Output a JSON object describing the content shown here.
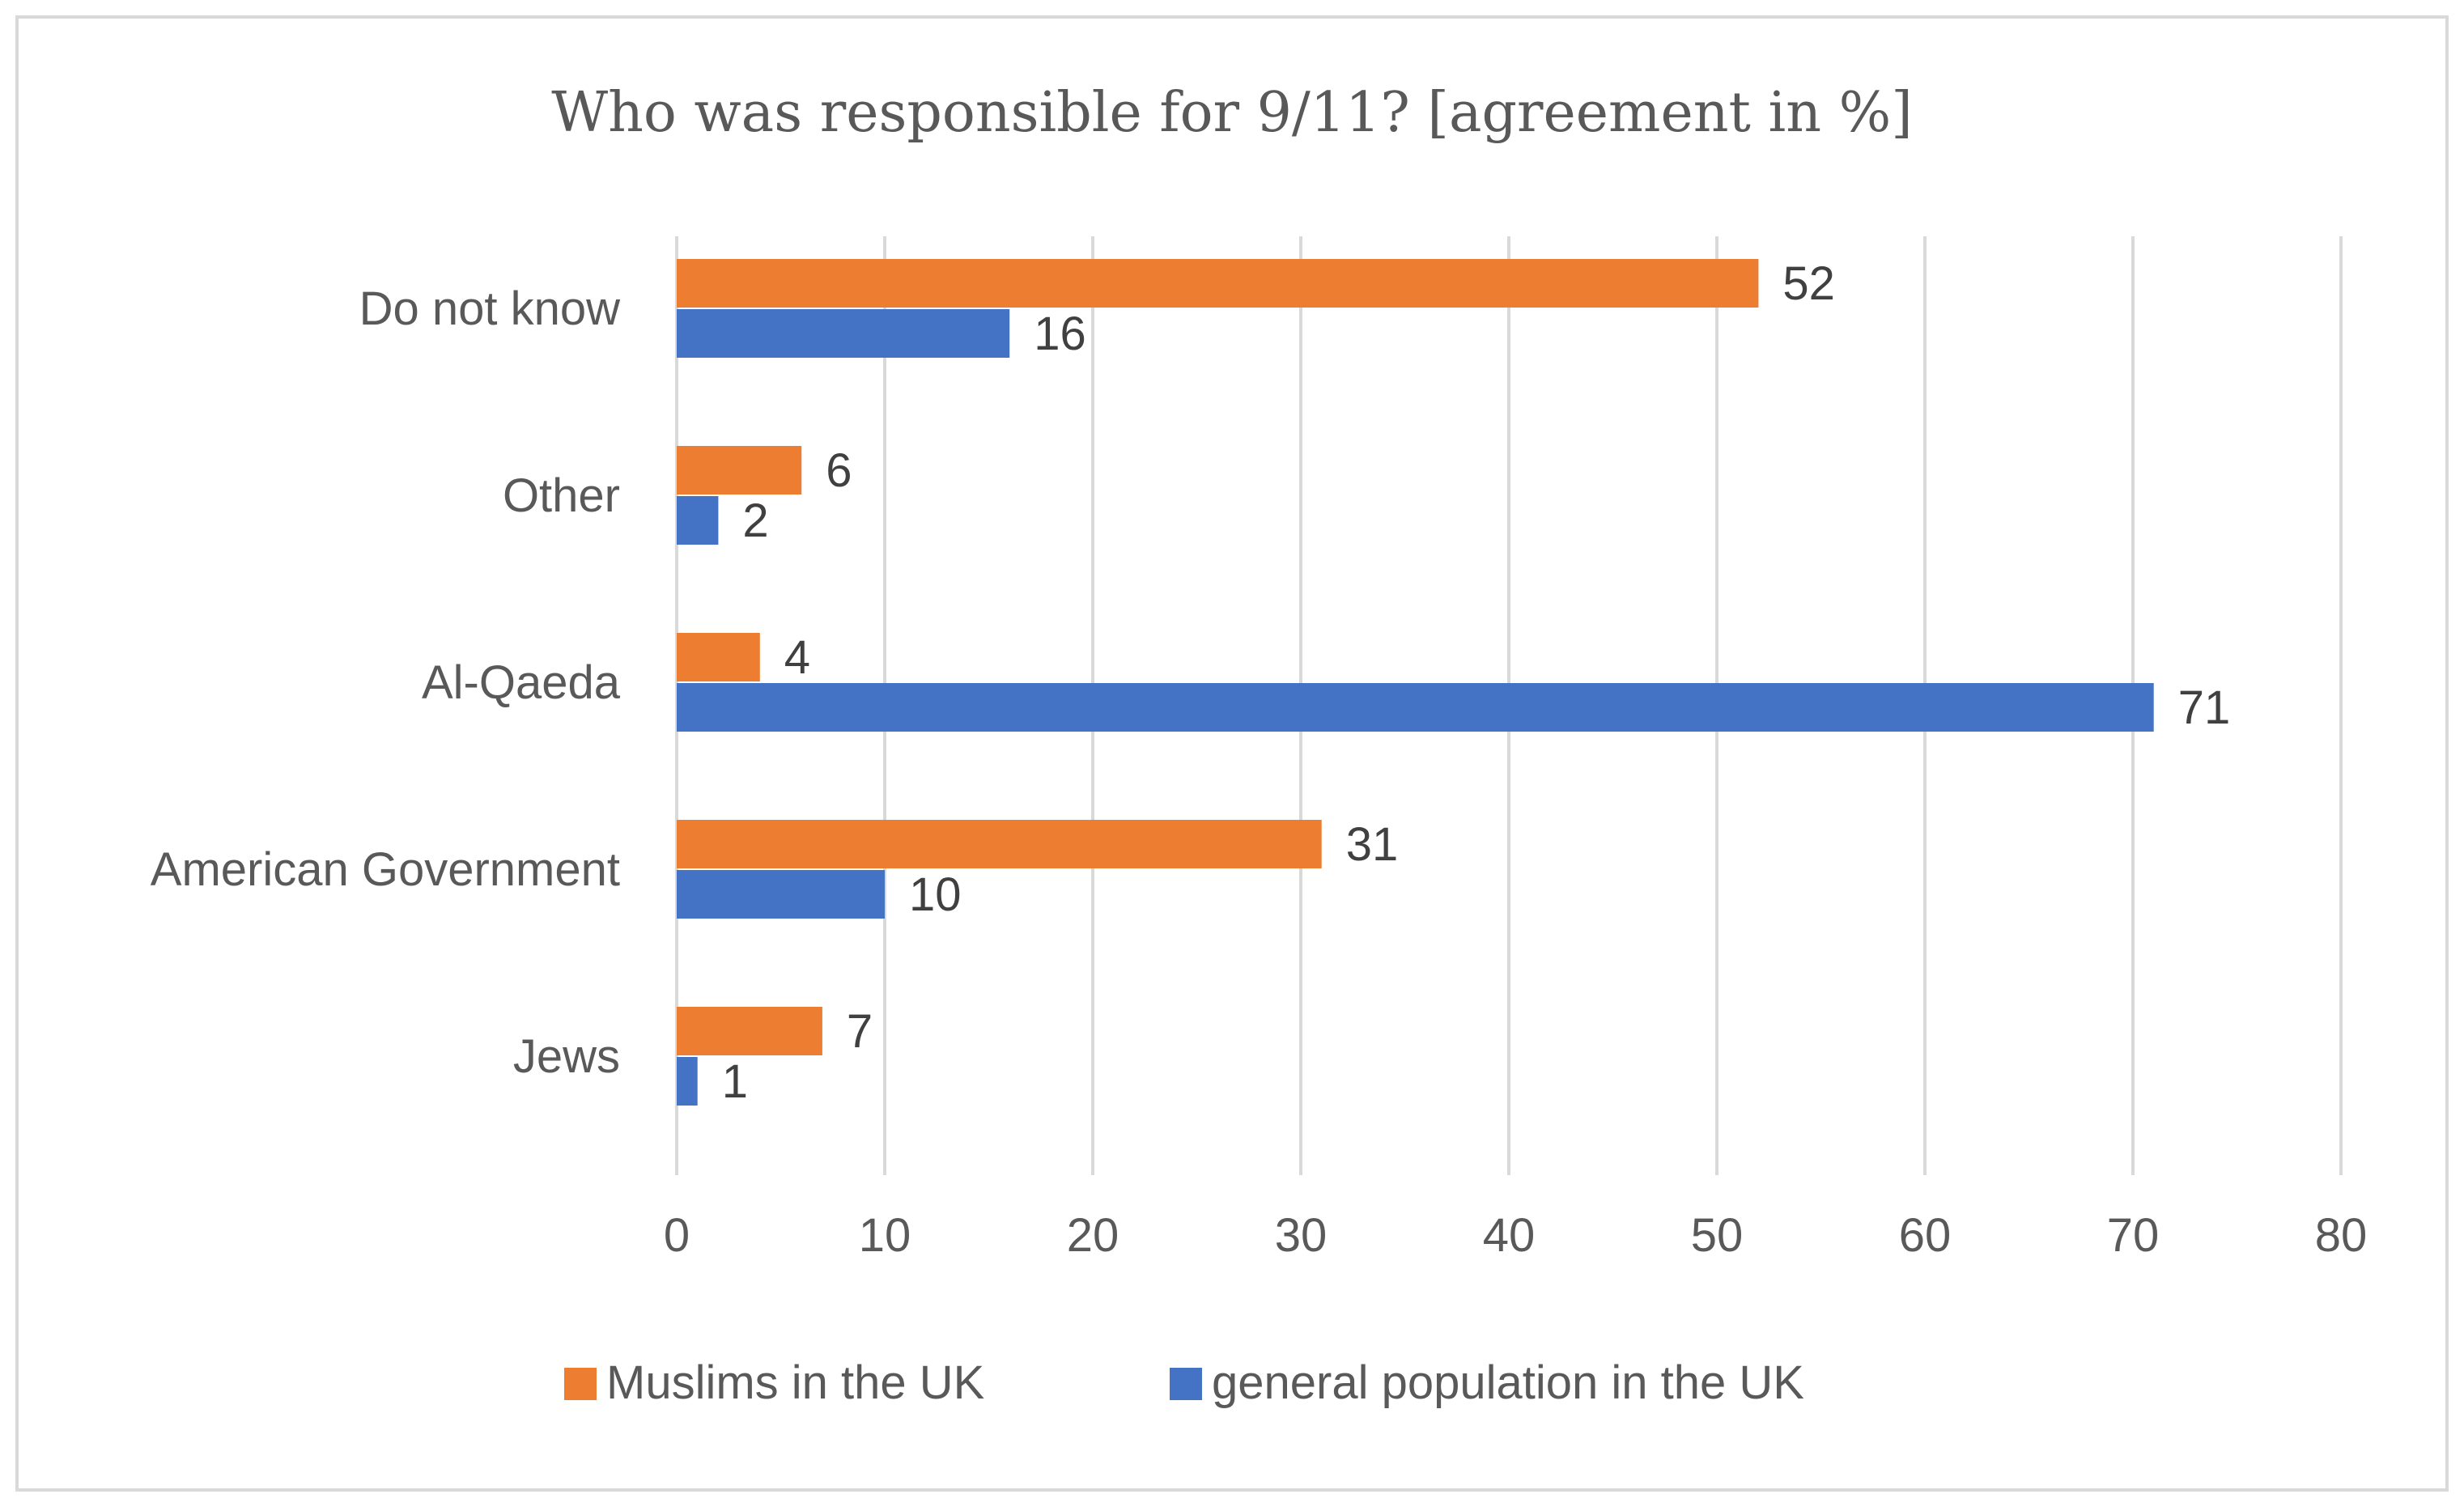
{
  "chart_data": {
    "type": "bar",
    "orientation": "horizontal",
    "title": "Who was responsible for 9/11? [agreement in %]",
    "categories": [
      "Do not know",
      "Other",
      "Al-Qaeda",
      "American Government",
      "Jews"
    ],
    "series": [
      {
        "name": "Muslims in the UK",
        "color": "#ED7D31",
        "values": [
          52,
          6,
          4,
          31,
          7
        ]
      },
      {
        "name": "general population in the UK",
        "color": "#4472C4",
        "values": [
          16,
          2,
          71,
          10,
          1
        ]
      }
    ],
    "xlim": [
      0,
      80
    ],
    "xticks": [
      "0",
      "10",
      "20",
      "30",
      "40",
      "50",
      "60",
      "70",
      "80"
    ],
    "xlabel": "",
    "ylabel": "",
    "grid": true,
    "legend_position": "bottom"
  }
}
